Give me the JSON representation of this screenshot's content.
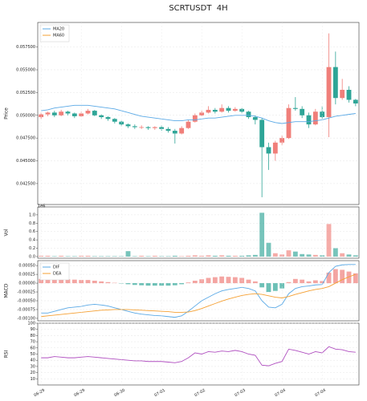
{
  "chart_data": [
    {
      "type": "candlestick",
      "title": "SCRTUSDT  4H",
      "ylabel": "Price",
      "up_color": "#f07f7a",
      "down_color": "#2ea597",
      "open": [
        0.0498,
        0.0501,
        0.0503,
        0.05,
        0.0504,
        0.0502,
        0.0499,
        0.0502,
        0.0505,
        0.05,
        0.0498,
        0.0496,
        0.0493,
        0.049,
        0.0488,
        0.0487,
        0.0487,
        0.0486,
        0.0487,
        0.0485,
        0.0483,
        0.048,
        0.0486,
        0.0493,
        0.05,
        0.0503,
        0.0506,
        0.0504,
        0.0508,
        0.0505,
        0.0507,
        0.0504,
        0.0498,
        0.0495,
        0.0465,
        0.0458,
        0.047,
        0.0475,
        0.0508,
        0.0507,
        0.05,
        0.049,
        0.0504,
        0.0498,
        0.0553,
        0.0519,
        0.0528,
        0.0517
      ],
      "high": [
        0.0503,
        0.0504,
        0.0505,
        0.0506,
        0.0505,
        0.0503,
        0.0504,
        0.0507,
        0.0506,
        0.0501,
        0.0499,
        0.0497,
        0.0494,
        0.0491,
        0.049,
        0.0489,
        0.0488,
        0.0488,
        0.0489,
        0.0487,
        0.0485,
        0.0488,
        0.0495,
        0.0502,
        0.0505,
        0.051,
        0.0508,
        0.0512,
        0.051,
        0.0509,
        0.0508,
        0.0505,
        0.05,
        0.0497,
        0.047,
        0.0472,
        0.0478,
        0.0512,
        0.052,
        0.051,
        0.0503,
        0.0507,
        0.051,
        0.059,
        0.057,
        0.054,
        0.0532,
        0.0518
      ],
      "low": [
        0.0496,
        0.0499,
        0.0498,
        0.0499,
        0.05,
        0.0497,
        0.0498,
        0.0501,
        0.0499,
        0.0496,
        0.0494,
        0.0491,
        0.0488,
        0.0486,
        0.0485,
        0.0485,
        0.0484,
        0.0484,
        0.0483,
        0.0481,
        0.0469,
        0.0479,
        0.0485,
        0.0492,
        0.0499,
        0.0502,
        0.0502,
        0.0503,
        0.0503,
        0.0504,
        0.0502,
        0.0496,
        0.049,
        0.041,
        0.044,
        0.045,
        0.0467,
        0.0474,
        0.0505,
        0.0497,
        0.0486,
        0.0489,
        0.0496,
        0.0476,
        0.0512,
        0.0517,
        0.0514,
        0.051
      ],
      "close": [
        0.0501,
        0.0503,
        0.05,
        0.0504,
        0.0502,
        0.0499,
        0.0502,
        0.0505,
        0.05,
        0.0498,
        0.0496,
        0.0493,
        0.049,
        0.0488,
        0.0487,
        0.0487,
        0.0486,
        0.0487,
        0.0485,
        0.0483,
        0.048,
        0.0486,
        0.0493,
        0.05,
        0.0503,
        0.0506,
        0.0504,
        0.0508,
        0.0505,
        0.0507,
        0.0504,
        0.0498,
        0.0495,
        0.0465,
        0.0458,
        0.047,
        0.0475,
        0.0508,
        0.0507,
        0.05,
        0.049,
        0.0504,
        0.0498,
        0.0553,
        0.0519,
        0.0528,
        0.0517,
        0.0513
      ],
      "series": [
        {
          "name": "MA20",
          "color": "#5aa9e6",
          "values": [
            0.0505,
            0.0506,
            0.0508,
            0.0509,
            0.051,
            0.0511,
            0.0511,
            0.0511,
            0.051,
            0.0509,
            0.0508,
            0.0507,
            0.0505,
            0.0503,
            0.0501,
            0.0499,
            0.0498,
            0.0497,
            0.0496,
            0.0495,
            0.0494,
            0.0494,
            0.0495,
            0.0495,
            0.0496,
            0.0497,
            0.0497,
            0.0498,
            0.0499,
            0.05,
            0.05,
            0.05,
            0.0499,
            0.0497,
            0.0494,
            0.0492,
            0.0491,
            0.0492,
            0.0493,
            0.0493,
            0.0493,
            0.0494,
            0.0495,
            0.0497,
            0.0499,
            0.05,
            0.0501,
            0.0502
          ]
        },
        {
          "name": "MA60",
          "color": "#f5a033",
          "values": [
            null,
            null,
            null,
            null,
            null,
            null,
            null,
            null,
            null,
            null,
            null,
            null,
            null,
            null,
            null,
            null,
            null,
            null,
            null,
            null,
            null,
            null,
            null,
            null,
            null,
            null,
            null,
            null,
            null,
            null,
            null,
            null,
            null,
            null,
            null,
            null,
            null,
            null,
            null,
            null,
            null,
            null,
            null,
            null,
            null,
            null,
            null,
            null
          ]
        }
      ],
      "ylim": [
        0.0402,
        0.0602
      ],
      "yticks": [
        {
          "value": 0.0425,
          "label": "0.042500"
        },
        {
          "value": 0.045,
          "label": "0.045000"
        },
        {
          "value": 0.0475,
          "label": "0.047500"
        },
        {
          "value": 0.05,
          "label": "0.050000"
        },
        {
          "value": 0.0525,
          "label": "0.052500"
        },
        {
          "value": 0.055,
          "label": "0.055000"
        },
        {
          "value": 0.0575,
          "label": "0.057500"
        }
      ],
      "grid": true,
      "legend": "upper left"
    },
    {
      "type": "volume",
      "ylabel": "Vol",
      "offset_label": "1e6",
      "values": [
        0.02,
        0.02,
        0.01,
        0.02,
        0.01,
        0.01,
        0.02,
        0.02,
        0.01,
        0.01,
        0.01,
        0.01,
        0.01,
        0.13,
        0.01,
        0.02,
        0.01,
        0.02,
        0.01,
        0.01,
        0.02,
        0.01,
        0.02,
        0.03,
        0.02,
        0.03,
        0.02,
        0.03,
        0.02,
        0.02,
        0.02,
        0.03,
        0.04,
        1.05,
        0.33,
        0.08,
        0.05,
        0.15,
        0.12,
        0.06,
        0.05,
        0.04,
        0.03,
        0.78,
        0.2,
        0.08,
        0.05,
        0.03
      ],
      "ylim": [
        -0.04,
        1.19
      ],
      "yticks": [
        {
          "value": 0,
          "label": "0.0"
        },
        0.2,
        0.4,
        0.6,
        0.8,
        {
          "value": 1,
          "label": "1.0"
        }
      ],
      "grid": true
    },
    {
      "type": "macd",
      "ylabel": "MACD",
      "histogram": [
        0.00012,
        0.00013,
        0.00013,
        0.00012,
        0.00011,
        0.0001,
        9e-05,
        9e-05,
        7e-05,
        5e-05,
        3e-05,
        1e-05,
        -1e-05,
        -3e-05,
        -5e-05,
        -6e-05,
        -7e-05,
        -7e-05,
        -7e-05,
        -7e-05,
        -6e-05,
        -3e-05,
        2e-05,
        7e-05,
        0.00011,
        0.00015,
        0.00017,
        0.00019,
        0.00018,
        0.00017,
        0.00015,
        0.0001,
        5e-05,
        -0.00012,
        -0.00025,
        -0.00022,
        -0.00015,
        3e-05,
        0.00012,
        0.0001,
        5e-05,
        8e-05,
        6e-05,
        0.0003,
        0.0004,
        0.00038,
        0.00033,
        0.00028
      ],
      "series": [
        {
          "name": "DIF",
          "color": "#5aa9e6",
          "values": [
            -0.00085,
            -0.00085,
            -0.0008,
            -0.00075,
            -0.0007,
            -0.00068,
            -0.00066,
            -0.00062,
            -0.0006,
            -0.00062,
            -0.00065,
            -0.0007,
            -0.00075,
            -0.0008,
            -0.00085,
            -0.00088,
            -0.0009,
            -0.00092,
            -0.00093,
            -0.00095,
            -0.00097,
            -0.00093,
            -0.0008,
            -0.00065,
            -0.0005,
            -0.0004,
            -0.0003,
            -0.00022,
            -0.00018,
            -0.00015,
            -0.00012,
            -0.00015,
            -0.00022,
            -0.0005,
            -0.00068,
            -0.0007,
            -0.0006,
            -0.0003,
            -0.00015,
            -0.0001,
            -8e-05,
            -5e-05,
            -4e-05,
            0.0003,
            0.00048,
            0.00052,
            0.00053,
            0.00053
          ]
        },
        {
          "name": "DEA",
          "color": "#f5a033",
          "values": [
            -0.00095,
            -0.00093,
            -0.00091,
            -0.00089,
            -0.00087,
            -0.00085,
            -0.00083,
            -0.00081,
            -0.00079,
            -0.00077,
            -0.00076,
            -0.00075,
            -0.00075,
            -0.00075,
            -0.00076,
            -0.00077,
            -0.00078,
            -0.00079,
            -0.0008,
            -0.00081,
            -0.00083,
            -0.00083,
            -0.00082,
            -0.00078,
            -0.00072,
            -0.00065,
            -0.00058,
            -0.00051,
            -0.00045,
            -0.0004,
            -0.00035,
            -0.00032,
            -0.0003,
            -0.00032,
            -0.00036,
            -0.0004,
            -0.00042,
            -0.00038,
            -0.00032,
            -0.00027,
            -0.00022,
            -0.00018,
            -0.00015,
            -0.0001,
            0,
            0.0001,
            0.00018,
            0.00025
          ]
        }
      ],
      "ylim": [
        -0.00107,
        0.00064
      ],
      "yticks": [
        {
          "value": -0.001,
          "label": "-0.00100"
        },
        {
          "value": -0.00075,
          "label": "-0.00075"
        },
        {
          "value": -0.0005,
          "label": "-0.00050"
        },
        {
          "value": -0.00025,
          "label": "-0.00025"
        },
        {
          "value": 0,
          "label": "0.00000"
        },
        {
          "value": 0.00025,
          "label": "0.00025"
        },
        {
          "value": 0.0005,
          "label": "0.00050"
        }
      ],
      "grid": true,
      "legend": "upper left"
    },
    {
      "type": "line",
      "ylabel": "RSI",
      "series": [
        {
          "color": "#b04fc0",
          "values": [
            44,
            44,
            46,
            45,
            44,
            44,
            45,
            46,
            45,
            44,
            43,
            42,
            41,
            40,
            39,
            39,
            38,
            38,
            38,
            37,
            36,
            38,
            44,
            52,
            50,
            54,
            53,
            55,
            54,
            56,
            54,
            50,
            48,
            32,
            31,
            35,
            38,
            58,
            56,
            53,
            50,
            54,
            52,
            62,
            58,
            57,
            54,
            53
          ]
        }
      ],
      "ylim": [
        0,
        100
      ],
      "yticks": [
        10,
        20,
        30,
        40,
        50,
        60,
        70,
        80,
        90,
        100
      ],
      "grid": true,
      "xticks": [
        {
          "value": 0,
          "label": "06-29"
        },
        {
          "value": 6,
          "label": "06-29"
        },
        {
          "value": 12,
          "label": "06-30"
        },
        {
          "value": 18,
          "label": "07-01"
        },
        {
          "value": 24,
          "label": "07-02"
        },
        {
          "value": 30,
          "label": "07-03"
        },
        {
          "value": 36,
          "label": "07-04"
        },
        {
          "value": 42,
          "label": "07-04"
        }
      ]
    }
  ]
}
